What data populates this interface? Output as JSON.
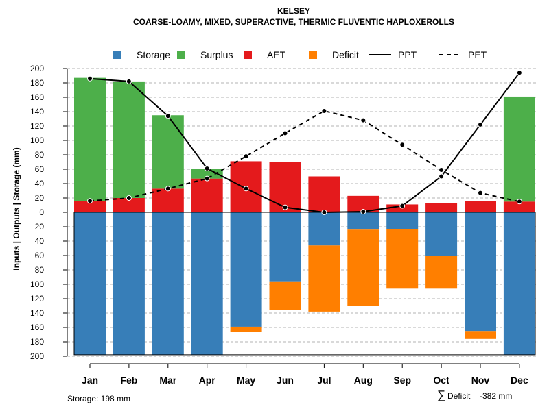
{
  "chart_data": {
    "type": "bar",
    "title": "KELSEY",
    "subtitle": "COARSE-LOAMY, MIXED, SUPERACTIVE, THERMIC FLUVENTIC HAPLOXEROLLS",
    "ylabel": "Inputs | Outputs | Storage    (mm)",
    "ylim": [
      -200,
      200
    ],
    "yticks": [
      "200",
      "180",
      "160",
      "140",
      "120",
      "100",
      "80",
      "60",
      "40",
      "20",
      "0",
      "20",
      "40",
      "60",
      "80",
      "100",
      "120",
      "140",
      "160",
      "180",
      "200"
    ],
    "categories": [
      "Jan",
      "Feb",
      "Mar",
      "Apr",
      "May",
      "Jun",
      "Jul",
      "Aug",
      "Sep",
      "Oct",
      "Nov",
      "Dec"
    ],
    "series": [
      {
        "name": "Storage",
        "color": "#377EB8",
        "values": [
          198,
          198,
          198,
          198,
          159,
          96,
          46,
          24,
          23,
          60,
          165,
          198
        ]
      },
      {
        "name": "Surplus",
        "color": "#4DAF4A",
        "values": [
          171,
          162,
          102,
          13,
          0,
          0,
          0,
          0,
          0,
          0,
          0,
          146
        ]
      },
      {
        "name": "AET",
        "color": "#E41A1C",
        "values": [
          16,
          20,
          33,
          47,
          71,
          70,
          50,
          23,
          11,
          13,
          16,
          15
        ]
      },
      {
        "name": "Deficit",
        "color": "#FF7F00",
        "values": [
          0,
          0,
          0,
          0,
          7,
          40,
          92,
          106,
          83,
          46,
          11,
          0
        ]
      },
      {
        "name": "PPT",
        "color": "#000000",
        "style": "solid",
        "values": [
          186,
          182,
          134,
          61,
          33,
          7,
          0,
          1,
          9,
          50,
          122,
          194
        ]
      },
      {
        "name": "PET",
        "color": "#000000",
        "style": "dashed",
        "values": [
          16,
          20,
          33,
          47,
          78,
          110,
          141,
          128,
          94,
          59,
          27,
          15
        ]
      }
    ],
    "grid": true,
    "legend": "top",
    "footer_left": "Storage: 198 mm",
    "footer_right_symbol": "∑",
    "footer_right": "Deficit = -382 mm"
  }
}
